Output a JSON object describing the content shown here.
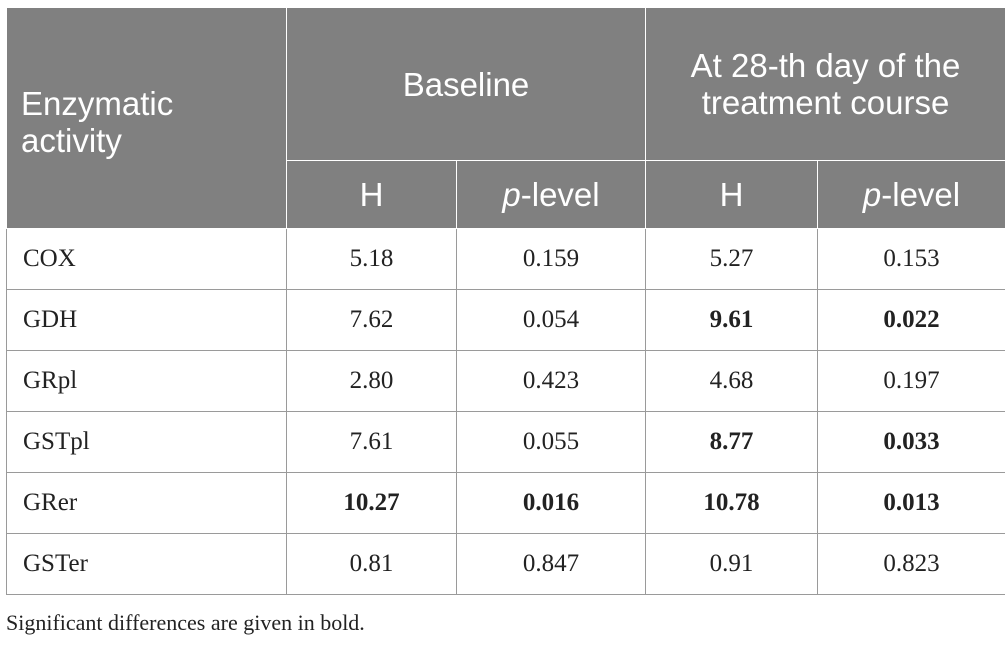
{
  "header": {
    "row_label": "Enzymatic activity",
    "group1": "Baseline",
    "group2": "At 28-th day of the treatment course",
    "col_h": "H",
    "col_p_italic": "p",
    "col_p_rest": "-level"
  },
  "rows": [
    {
      "name": "COX",
      "h1": "5.18",
      "p1": "0.159",
      "h2": "5.27",
      "p2": "0.153",
      "bold": [
        false,
        false,
        false,
        false
      ]
    },
    {
      "name": "GDH",
      "h1": "7.62",
      "p1": "0.054",
      "h2": "9.61",
      "p2": "0.022",
      "bold": [
        false,
        false,
        true,
        true
      ]
    },
    {
      "name": "GRpl",
      "h1": "2.80",
      "p1": "0.423",
      "h2": "4.68",
      "p2": "0.197",
      "bold": [
        false,
        false,
        false,
        false
      ]
    },
    {
      "name": "GSTpl",
      "h1": "7.61",
      "p1": "0.055",
      "h2": "8.77",
      "p2": "0.033",
      "bold": [
        false,
        false,
        true,
        true
      ]
    },
    {
      "name": "GRer",
      "h1": "10.27",
      "p1": "0.016",
      "h2": "10.78",
      "p2": "0.013",
      "bold": [
        true,
        true,
        true,
        true
      ]
    },
    {
      "name": "GSTer",
      "h1": "0.81",
      "p1": "0.847",
      "h2": "0.91",
      "p2": "0.823",
      "bold": [
        false,
        false,
        false,
        false
      ]
    }
  ],
  "footnote": "Significant differences are given in bold.",
  "colors": {
    "header_bg": "#808080",
    "header_text": "#ffffff"
  }
}
